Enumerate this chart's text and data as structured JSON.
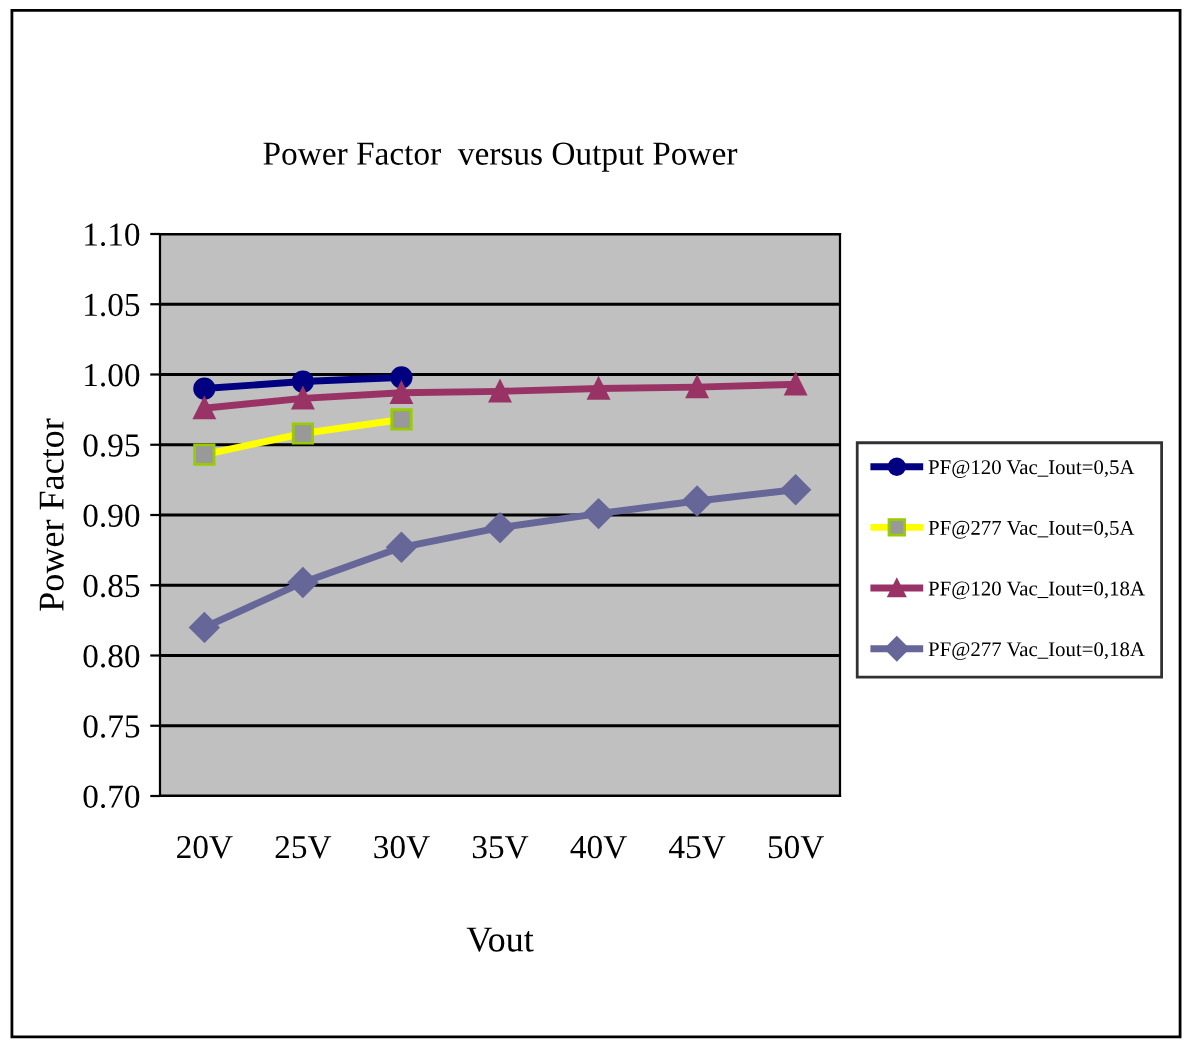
{
  "chart_data": {
    "type": "line",
    "title": "Power Factor  versus Output Power",
    "xlabel": "Vout",
    "ylabel": "Power Factor",
    "categories": [
      "20V",
      "25V",
      "30V",
      "35V",
      "40V",
      "45V",
      "50V"
    ],
    "series": [
      {
        "name": "PF@120 Vac_Iout=0,5A",
        "color": "#000080",
        "marker": "circle",
        "values": [
          0.99,
          0.995,
          0.998,
          null,
          null,
          null,
          null
        ]
      },
      {
        "name": "PF@277 Vac_Iout=0,5A",
        "color": "#ffff00",
        "marker": "square",
        "values": [
          0.943,
          0.958,
          0.968,
          null,
          null,
          null,
          null
        ]
      },
      {
        "name": "PF@120 Vac_Iout=0,18A",
        "color": "#993366",
        "marker": "triangle",
        "values": [
          0.976,
          0.983,
          0.987,
          0.988,
          0.99,
          0.991,
          0.993
        ]
      },
      {
        "name": "PF@277 Vac_Iout=0,18A",
        "color": "#666699",
        "marker": "diamond",
        "values": [
          0.82,
          0.852,
          0.877,
          0.891,
          0.901,
          0.91,
          0.918
        ]
      }
    ],
    "ylim": [
      0.7,
      1.1
    ],
    "yticks": [
      {
        "value": 0.7,
        "label": "0.70"
      },
      {
        "value": 0.75,
        "label": "0.75"
      },
      {
        "value": 0.8,
        "label": "0.80"
      },
      {
        "value": 0.85,
        "label": "0.85"
      },
      {
        "value": 0.9,
        "label": "0.90"
      },
      {
        "value": 0.95,
        "label": "0.95"
      },
      {
        "value": 1.0,
        "label": "1.00"
      },
      {
        "value": 1.05,
        "label": "1.05"
      },
      {
        "value": 1.1,
        "label": "1.10"
      }
    ],
    "grid": "y",
    "legend": "right"
  }
}
